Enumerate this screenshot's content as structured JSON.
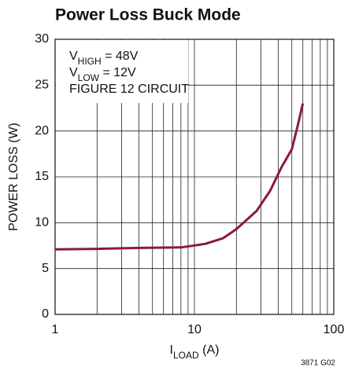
{
  "chart_data": {
    "type": "line",
    "title": "Power Loss Buck Mode",
    "annotations": [
      {
        "text": "V",
        "sub": "HIGH",
        "after": " = 48V"
      },
      {
        "text": "V",
        "sub": "LOW",
        "after": " = 12V"
      },
      {
        "text": "FIGURE 12 CIRCUIT"
      }
    ],
    "xlabel": {
      "text": "I",
      "sub": "LOAD",
      "after": " (A)"
    },
    "ylabel": "POWER LOSS (W)",
    "footnote": "3871 G02",
    "xscale": "log",
    "xlim": [
      1,
      100
    ],
    "xticks": [
      1,
      10,
      100
    ],
    "xminorticks": [
      2,
      3,
      4,
      5,
      6,
      7,
      8,
      9,
      20,
      30,
      40,
      50,
      60,
      70,
      80,
      90
    ],
    "ylim": [
      0,
      30
    ],
    "yticks": [
      0,
      5,
      10,
      15,
      20,
      25,
      30
    ],
    "grid": true,
    "x": [
      1,
      2,
      4,
      8,
      12,
      16,
      20,
      28,
      35,
      42,
      50,
      55,
      60
    ],
    "series": [
      {
        "color": "#8b1a3c",
        "values": [
          7.1,
          7.15,
          7.25,
          7.3,
          7.7,
          8.3,
          9.3,
          11.3,
          13.5,
          16,
          18,
          20.5,
          23
        ]
      }
    ]
  }
}
